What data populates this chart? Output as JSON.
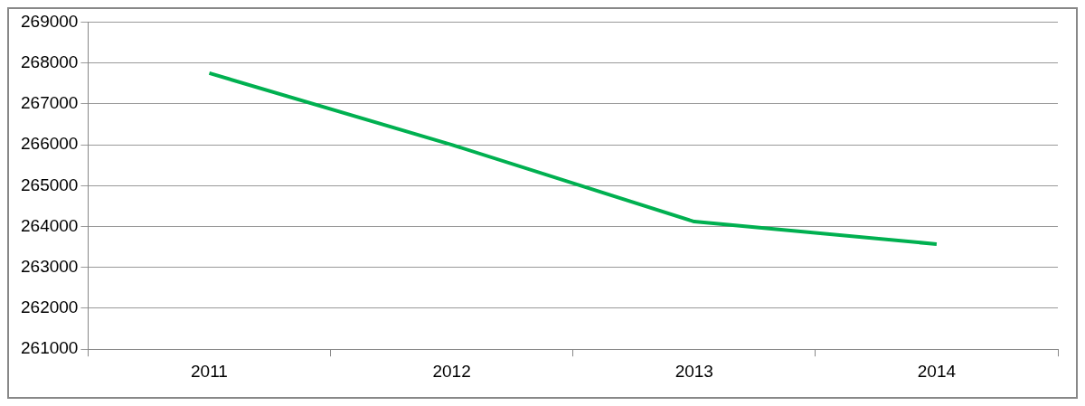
{
  "chart_data": {
    "type": "line",
    "categories": [
      "2011",
      "2012",
      "2013",
      "2014"
    ],
    "series": [
      {
        "color": "#00b050",
        "values": [
          267750,
          266000,
          264120,
          263570
        ]
      }
    ],
    "ylim": [
      261000,
      269000
    ],
    "yticks": [
      261000,
      262000,
      263000,
      264000,
      265000,
      266000,
      267000,
      268000,
      269000
    ],
    "grid": "y",
    "legend": false,
    "marker": "none"
  }
}
